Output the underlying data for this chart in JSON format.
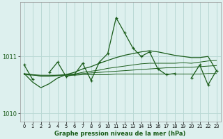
{
  "x": [
    0,
    1,
    2,
    3,
    4,
    5,
    6,
    7,
    8,
    9,
    10,
    11,
    12,
    13,
    14,
    15,
    16,
    17,
    18,
    19,
    20,
    21,
    22,
    23
  ],
  "background_color": "#ddf0ee",
  "grid_color": "#b8d8d4",
  "line_color_dark": "#1a5c1a",
  "line_color_mid": "#2d7a2d",
  "title": "Graphe pression niveau de la mer (hPa)",
  "yticks": [
    1010,
    1011
  ],
  "ylim": [
    1009.85,
    1011.95
  ],
  "xlim": [
    -0.5,
    23.5
  ],
  "jagged_y": [
    1010.85,
    1010.6,
    null,
    1010.72,
    1010.9,
    1010.65,
    1010.68,
    1010.88,
    1010.58,
    1010.9,
    1011.05,
    1011.68,
    1011.42,
    1011.15,
    1011.0,
    1011.08,
    1010.78,
    1010.68,
    1010.7,
    null,
    1010.62,
    1010.85,
    1010.5,
    1010.75
  ],
  "smooth_flat": [
    1010.68,
    1010.68,
    1010.67,
    1010.67,
    1010.67,
    1010.67,
    1010.67,
    1010.68,
    1010.68,
    1010.68,
    1010.68,
    1010.69,
    1010.69,
    1010.69,
    1010.69,
    1010.69,
    1010.69,
    1010.69,
    1010.69,
    1010.69,
    1010.69,
    1010.69,
    1010.7,
    1010.7
  ],
  "smooth_slight": [
    1010.68,
    1010.67,
    1010.66,
    1010.66,
    1010.67,
    1010.68,
    1010.68,
    1010.7,
    1010.71,
    1010.72,
    1010.73,
    1010.74,
    1010.75,
    1010.76,
    1010.77,
    1010.78,
    1010.79,
    1010.8,
    1010.8,
    1010.81,
    1010.81,
    1010.82,
    1010.83,
    1010.84
  ],
  "smooth_med": [
    1010.7,
    1010.68,
    1010.65,
    1010.65,
    1010.66,
    1010.68,
    1010.69,
    1010.72,
    1010.74,
    1010.76,
    1010.79,
    1010.81,
    1010.83,
    1010.85,
    1010.87,
    1010.88,
    1010.88,
    1010.88,
    1010.88,
    1010.89,
    1010.88,
    1010.9,
    1010.92,
    1010.93
  ],
  "smooth_steep": [
    1010.7,
    1010.55,
    1010.45,
    1010.52,
    1010.62,
    1010.68,
    1010.72,
    1010.78,
    1010.82,
    1010.88,
    1010.93,
    1010.98,
    1011.02,
    1011.05,
    1011.08,
    1011.1,
    1011.08,
    1011.05,
    1011.02,
    1011.0,
    1010.98,
    1010.98,
    1011.0,
    1010.75
  ]
}
